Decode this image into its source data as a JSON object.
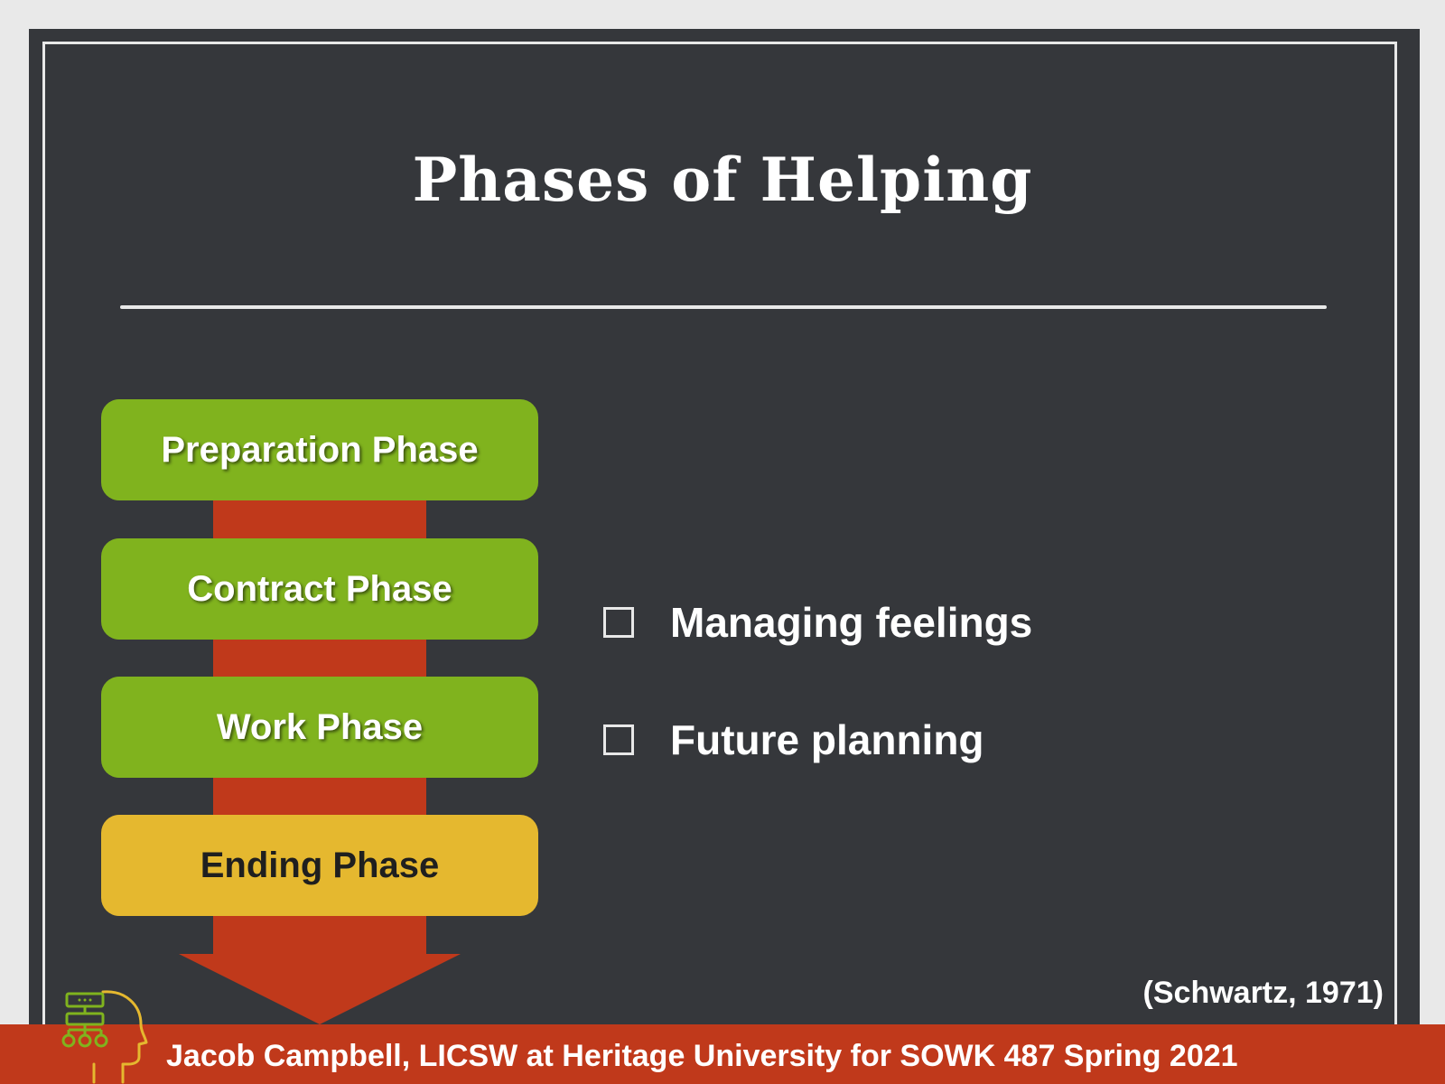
{
  "slide": {
    "title": "Phases of Helping"
  },
  "phases": [
    {
      "label": "Preparation Phase",
      "color": "#80b31e",
      "state": "completed"
    },
    {
      "label": "Contract Phase",
      "color": "#80b31e",
      "state": "completed"
    },
    {
      "label": "Work Phase",
      "color": "#80b31e",
      "state": "completed"
    },
    {
      "label": "Ending Phase",
      "color": "#e5b82f",
      "state": "current"
    }
  ],
  "bullets": [
    {
      "text": "Managing feelings",
      "icon": "checkbox-icon"
    },
    {
      "text": "Future planning",
      "icon": "checkbox-icon"
    }
  ],
  "citation": "(Schwartz, 1971)",
  "footer": {
    "text": "Jacob Campbell, LICSW at Heritage University for SOWK 487 Spring 2021",
    "logo_icon": "head-flowchart-icon"
  },
  "colors": {
    "background": "#35373b",
    "arrow": "#c0391b",
    "completed_phase": "#80b31e",
    "current_phase": "#e5b82f",
    "footer": "#c0391b"
  }
}
